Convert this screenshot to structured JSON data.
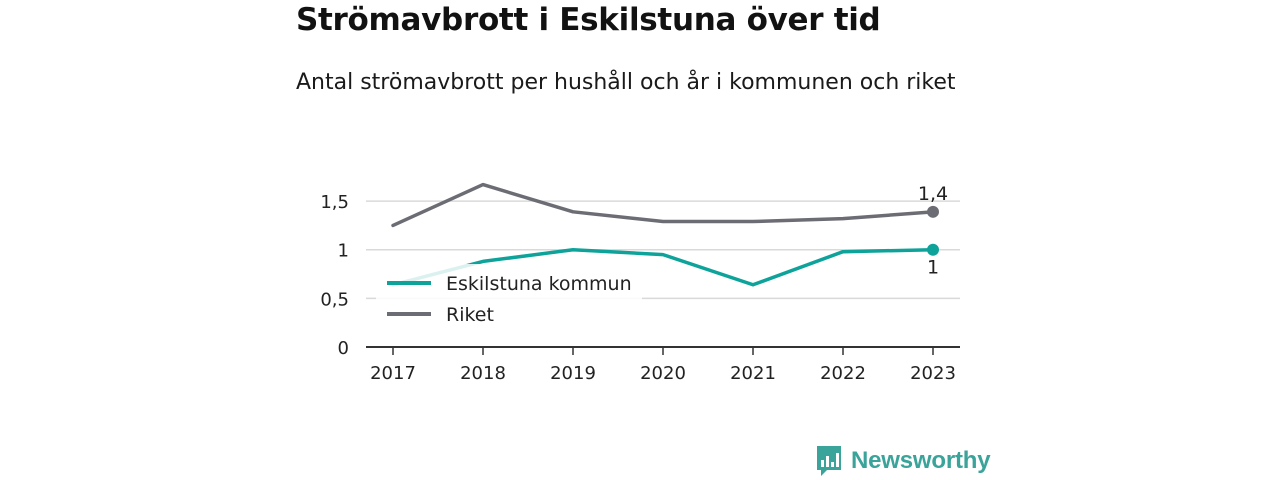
{
  "title": "Strömavbrott i Eskilstuna över tid",
  "subtitle": "Antal strömavbrott per hushåll och år i kommunen och riket",
  "brand": {
    "name": "Newsworthy",
    "color": "#3aa39a"
  },
  "chart_data": {
    "type": "line",
    "x": [
      "2017",
      "2018",
      "2019",
      "2020",
      "2021",
      "2022",
      "2023"
    ],
    "series": [
      {
        "name": "Eskilstuna kommun",
        "color": "#0ea39a",
        "values": [
          0.64,
          0.88,
          1.0,
          0.95,
          0.64,
          0.98,
          1.0
        ],
        "end_label": "1"
      },
      {
        "name": "Riket",
        "color": "#6c6c74",
        "values": [
          1.25,
          1.67,
          1.39,
          1.29,
          1.29,
          1.32,
          1.39
        ],
        "end_label": "1,4"
      }
    ],
    "y_ticks": [
      {
        "value": 0,
        "label": "0"
      },
      {
        "value": 0.5,
        "label": "0,5"
      },
      {
        "value": 1,
        "label": "1"
      },
      {
        "value": 1.5,
        "label": "1,5"
      }
    ],
    "ylim": [
      0,
      1.82
    ],
    "grid": true,
    "legend_position": "inside-left"
  }
}
